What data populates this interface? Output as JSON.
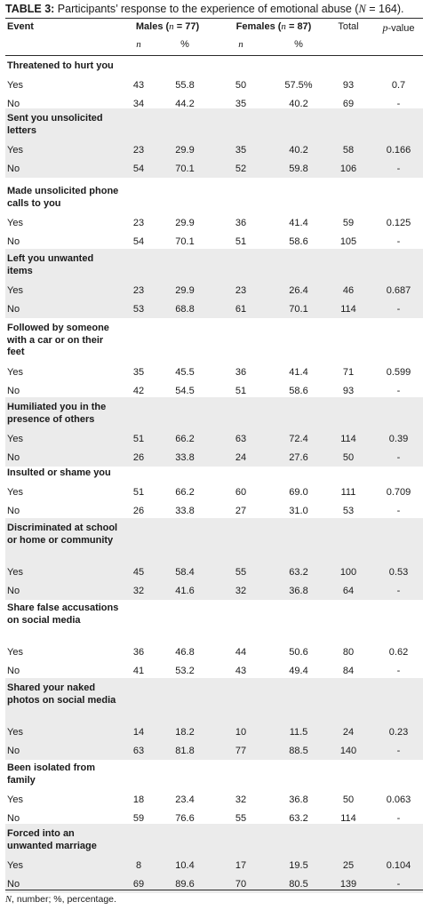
{
  "caption": {
    "label": "TABLE 3:",
    "text_before": " Participants’ response to the experience of emotional abuse (",
    "n_symbol": "N",
    "text_after": " = 164)."
  },
  "header": {
    "event": "Event",
    "males": "Males (n = 77)",
    "females": "Females (n = 87)",
    "total": "Total",
    "pvalue": "p-value",
    "n": "n",
    "pct": "%"
  },
  "rows": [
    {
      "event": "Threatened to hurt you",
      "yes": [
        "43",
        "55.8",
        "50",
        "57.5%",
        "93",
        "0.7"
      ],
      "no": [
        "34",
        "44.2",
        "35",
        "40.2",
        "69",
        "-"
      ]
    },
    {
      "event": "Sent you unsolicited letters",
      "yes": [
        "23",
        "29.9",
        "35",
        "40.2",
        "58",
        "0.166"
      ],
      "no": [
        "54",
        "70.1",
        "52",
        "59.8",
        "106",
        "-"
      ]
    },
    {
      "event": "Made unsolicited phone calls to you",
      "yes": [
        "23",
        "29.9",
        "36",
        "41.4",
        "59",
        "0.125"
      ],
      "no": [
        "54",
        "70.1",
        "51",
        "58.6",
        "105",
        "-"
      ]
    },
    {
      "event": "Left you unwanted items",
      "yes": [
        "23",
        "29.9",
        "23",
        "26.4",
        "46",
        "0.687"
      ],
      "no": [
        "53",
        "68.8",
        "61",
        "70.1",
        "114",
        "-"
      ]
    },
    {
      "event": "Followed by someone with a car or on their feet",
      "yes": [
        "35",
        "45.5",
        "36",
        "41.4",
        "71",
        "0.599"
      ],
      "no": [
        "42",
        "54.5",
        "51",
        "58.6",
        "93",
        "-"
      ]
    },
    {
      "event": "Humiliated you in the presence of others",
      "yes": [
        "51",
        "66.2",
        "63",
        "72.4",
        "114",
        "0.39"
      ],
      "no": [
        "26",
        "33.8",
        "24",
        "27.6",
        "50",
        "-"
      ]
    },
    {
      "event": "Insulted or shame you",
      "yes": [
        "51",
        "66.2",
        "60",
        "69.0",
        "111",
        "0.709"
      ],
      "no": [
        "26",
        "33.8",
        "27",
        "31.0",
        "53",
        "-"
      ]
    },
    {
      "event": "Discriminated at school or home or community",
      "yes": [
        "45",
        "58.4",
        "55",
        "63.2",
        "100",
        "0.53"
      ],
      "no": [
        "32",
        "41.6",
        "32",
        "36.8",
        "64",
        "-"
      ]
    },
    {
      "event": "Share false accusations on social media",
      "yes": [
        "36",
        "46.8",
        "44",
        "50.6",
        "80",
        "0.62"
      ],
      "no": [
        "41",
        "53.2",
        "43",
        "49.4",
        "84",
        "-"
      ]
    },
    {
      "event": "Shared your naked photos on social media",
      "yes": [
        "14",
        "18.2",
        "10",
        "11.5",
        "24",
        "0.23"
      ],
      "no": [
        "63",
        "81.8",
        "77",
        "88.5",
        "140",
        "-"
      ]
    },
    {
      "event": "Been isolated from family",
      "yes": [
        "18",
        "23.4",
        "32",
        "36.8",
        "50",
        "0.063"
      ],
      "no": [
        "59",
        "76.6",
        "55",
        "63.2",
        "114",
        "-"
      ]
    },
    {
      "event": "Forced into an unwanted marriage",
      "yes": [
        "8",
        "10.4",
        "17",
        "19.5",
        "25",
        "0.104"
      ],
      "no": [
        "69",
        "89.6",
        "70",
        "80.5",
        "139",
        "-"
      ]
    }
  ],
  "labels": {
    "yes": "Yes",
    "no": "No"
  },
  "footnote": {
    "n_symbol": "N",
    "text": ", number; %, percentage."
  }
}
